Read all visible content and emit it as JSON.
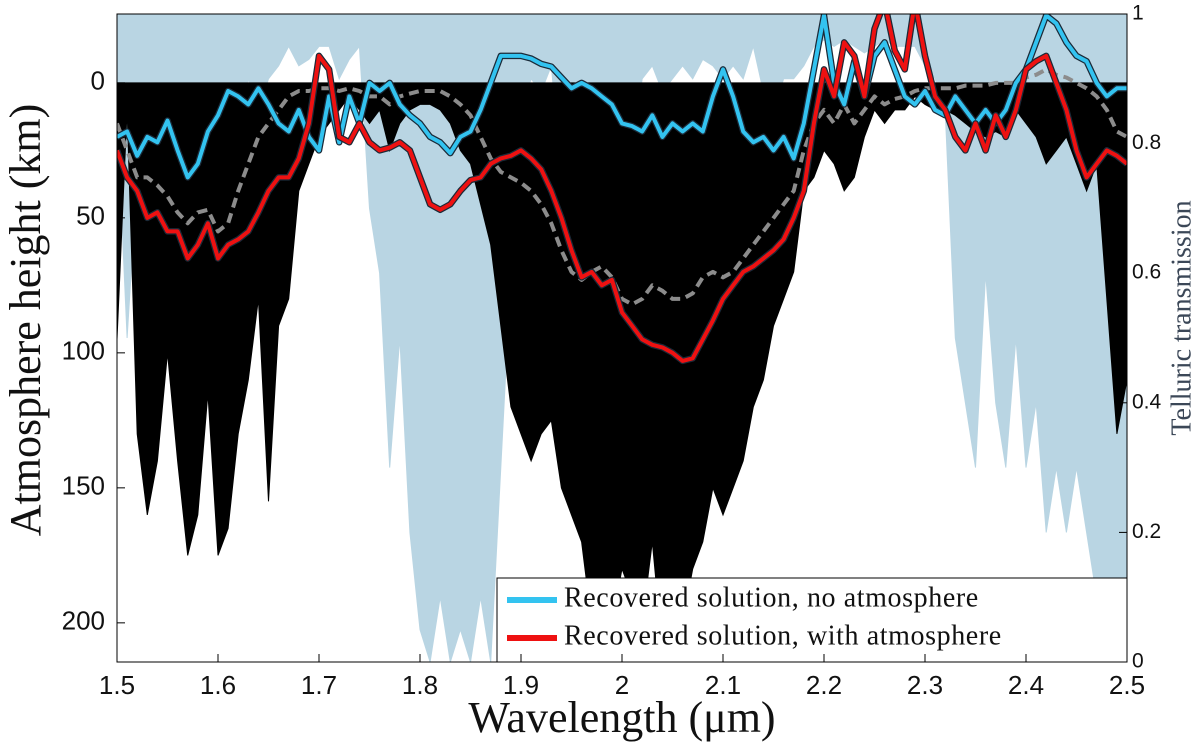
{
  "chart_data": {
    "type": "line",
    "xlabel": "Wavelength (μm)",
    "ylabel": "Atmosphere height (km)",
    "y2label": "Telluric transmission",
    "x": [
      1.5,
      1.51,
      1.52,
      1.53,
      1.54,
      1.55,
      1.56,
      1.57,
      1.58,
      1.59,
      1.6,
      1.61,
      1.62,
      1.63,
      1.64,
      1.65,
      1.66,
      1.67,
      1.68,
      1.69,
      1.7,
      1.71,
      1.72,
      1.73,
      1.74,
      1.75,
      1.76,
      1.77,
      1.78,
      1.79,
      1.8,
      1.81,
      1.82,
      1.83,
      1.84,
      1.85,
      1.86,
      1.87,
      1.88,
      1.89,
      1.9,
      1.91,
      1.92,
      1.93,
      1.94,
      1.95,
      1.96,
      1.97,
      1.98,
      1.99,
      2,
      2.01,
      2.02,
      2.03,
      2.04,
      2.05,
      2.06,
      2.07,
      2.08,
      2.09,
      2.1,
      2.11,
      2.12,
      2.13,
      2.14,
      2.15,
      2.16,
      2.17,
      2.18,
      2.19,
      2.2,
      2.21,
      2.22,
      2.23,
      2.24,
      2.25,
      2.26,
      2.27,
      2.28,
      2.29,
      2.3,
      2.31,
      2.32,
      2.33,
      2.34,
      2.35,
      2.36,
      2.37,
      2.38,
      2.39,
      2.4,
      2.41,
      2.42,
      2.43,
      2.44,
      2.45,
      2.46,
      2.47,
      2.48,
      2.49,
      2.5
    ],
    "series": [
      {
        "color": "#b9d5e3",
        "axis": "y2",
        "area": true,
        "values": [
          0.85,
          0.5,
          0.75,
          0.9,
          0.6,
          0.85,
          0.8,
          0.9,
          0.7,
          0.85,
          0.75,
          0.88,
          0.8,
          0.9,
          0.85,
          0.9,
          0.92,
          0.95,
          0.92,
          0.93,
          0.95,
          0.95,
          0.9,
          0.93,
          0.95,
          0.7,
          0.6,
          0.3,
          0.5,
          0.2,
          0.05,
          0,
          0.1,
          0,
          0.05,
          0,
          0.1,
          0,
          0.3,
          0.6,
          0.85,
          0.9,
          0.88,
          0.92,
          0.75,
          0.8,
          0.4,
          0.6,
          0.85,
          0.8,
          0.5,
          0.8,
          0.9,
          0.92,
          0.88,
          0.9,
          0.92,
          0.9,
          0.93,
          0.92,
          0.9,
          0.92,
          0.9,
          0.95,
          0.88,
          0.85,
          0.9,
          0.9,
          0.92,
          0.95,
          0.96,
          0.95,
          0.96,
          0.95,
          0.94,
          0.95,
          0.96,
          0.95,
          0.95,
          0.95,
          0.92,
          0.9,
          0.85,
          0.5,
          0.4,
          0.3,
          0.6,
          0.4,
          0.3,
          0.5,
          0.3,
          0.4,
          0.2,
          0.3,
          0.2,
          0.3,
          0.2,
          0.1,
          0.05,
          0.1,
          0.05
        ]
      },
      {
        "color": "#000000",
        "area": true,
        "values": [
          95,
          10,
          130,
          160,
          140,
          100,
          140,
          175,
          160,
          115,
          175,
          165,
          130,
          110,
          80,
          155,
          90,
          80,
          40,
          30,
          20,
          15,
          10,
          5,
          10,
          15,
          10,
          25,
          15,
          10,
          8,
          8,
          10,
          15,
          25,
          30,
          45,
          60,
          90,
          120,
          130,
          140,
          130,
          125,
          150,
          160,
          170,
          200,
          210,
          200,
          180,
          190,
          200,
          170,
          210,
          210,
          200,
          180,
          170,
          150,
          160,
          150,
          140,
          120,
          110,
          90,
          80,
          70,
          40,
          35,
          25,
          30,
          40,
          35,
          20,
          10,
          15,
          10,
          10,
          5,
          8,
          10,
          10,
          12,
          15,
          18,
          20,
          18,
          20,
          10,
          15,
          20,
          30,
          25,
          20,
          30,
          40,
          30,
          80,
          130,
          110
        ]
      },
      {
        "color": "#8c8c8c",
        "dashed": true,
        "values": [
          15,
          25,
          35,
          35,
          38,
          42,
          48,
          52,
          48,
          47,
          55,
          52,
          40,
          30,
          20,
          15,
          10,
          5,
          3,
          3,
          2,
          2,
          3,
          2,
          3,
          5,
          5,
          8,
          5,
          4,
          3,
          3,
          3,
          5,
          8,
          12,
          20,
          28,
          33,
          35,
          37,
          40,
          45,
          52,
          62,
          70,
          73,
          70,
          68,
          72,
          80,
          82,
          80,
          75,
          77,
          80,
          80,
          78,
          72,
          70,
          72,
          70,
          65,
          60,
          55,
          50,
          45,
          40,
          25,
          15,
          10,
          15,
          8,
          15,
          10,
          5,
          8,
          6,
          5,
          3,
          2,
          2,
          2,
          2,
          1,
          1,
          1,
          0,
          0,
          0,
          -2,
          -3,
          -5,
          -3,
          -2,
          0,
          2,
          5,
          10,
          18,
          20
        ]
      },
      {
        "name": "Recovered solution, no atmosphere",
        "color": "#33c3f0",
        "values": [
          20,
          18,
          27,
          20,
          22,
          14,
          25,
          35,
          30,
          18,
          12,
          3,
          5,
          8,
          2,
          8,
          15,
          18,
          10,
          20,
          25,
          5,
          22,
          5,
          15,
          0,
          3,
          0,
          8,
          12,
          15,
          20,
          22,
          26,
          20,
          18,
          10,
          0,
          -10,
          -10,
          -10,
          -9,
          -7,
          -6,
          -2,
          2,
          0,
          2,
          5,
          8,
          15,
          16,
          18,
          12,
          20,
          15,
          18,
          15,
          18,
          5,
          -5,
          5,
          18,
          22,
          20,
          25,
          20,
          28,
          15,
          -5,
          -25,
          0,
          8,
          -8,
          5,
          -10,
          -15,
          -5,
          5,
          8,
          3,
          10,
          12,
          5,
          10,
          15,
          10,
          15,
          10,
          0,
          -5,
          -15,
          -25,
          -22,
          -15,
          -10,
          -8,
          0,
          5,
          2,
          2
        ]
      },
      {
        "name": "Recovered solution, with atmosphere",
        "color": "#ee1111",
        "values": [
          25,
          35,
          40,
          50,
          48,
          55,
          55,
          65,
          60,
          52,
          65,
          60,
          58,
          55,
          48,
          40,
          35,
          35,
          28,
          15,
          -10,
          -5,
          20,
          22,
          15,
          22,
          25,
          24,
          22,
          25,
          35,
          45,
          47,
          45,
          40,
          36,
          35,
          30,
          28,
          27,
          25,
          28,
          32,
          40,
          50,
          62,
          72,
          70,
          75,
          73,
          85,
          90,
          95,
          97,
          98,
          100,
          103,
          102,
          95,
          88,
          80,
          75,
          70,
          68,
          65,
          62,
          58,
          50,
          40,
          15,
          -5,
          5,
          -15,
          -10,
          5,
          -20,
          -30,
          -12,
          -5,
          -30,
          -10,
          5,
          10,
          20,
          25,
          15,
          25,
          12,
          20,
          10,
          -5,
          -8,
          -10,
          0,
          10,
          25,
          35,
          30,
          25,
          27,
          30
        ]
      }
    ],
    "xlim": [
      1.5,
      2.5
    ],
    "xticks": [
      1.5,
      1.6,
      1.7,
      1.8,
      1.9,
      2,
      2.1,
      2.2,
      2.3,
      2.4,
      2.5
    ],
    "ylim": [
      214.5,
      -25.5
    ],
    "yticks": [
      0,
      50,
      100,
      150,
      200
    ],
    "y2lim": [
      0,
      1
    ],
    "y2ticks": [
      0,
      0.2,
      0.4,
      0.6,
      0.8,
      1
    ],
    "legend": "lower right"
  }
}
